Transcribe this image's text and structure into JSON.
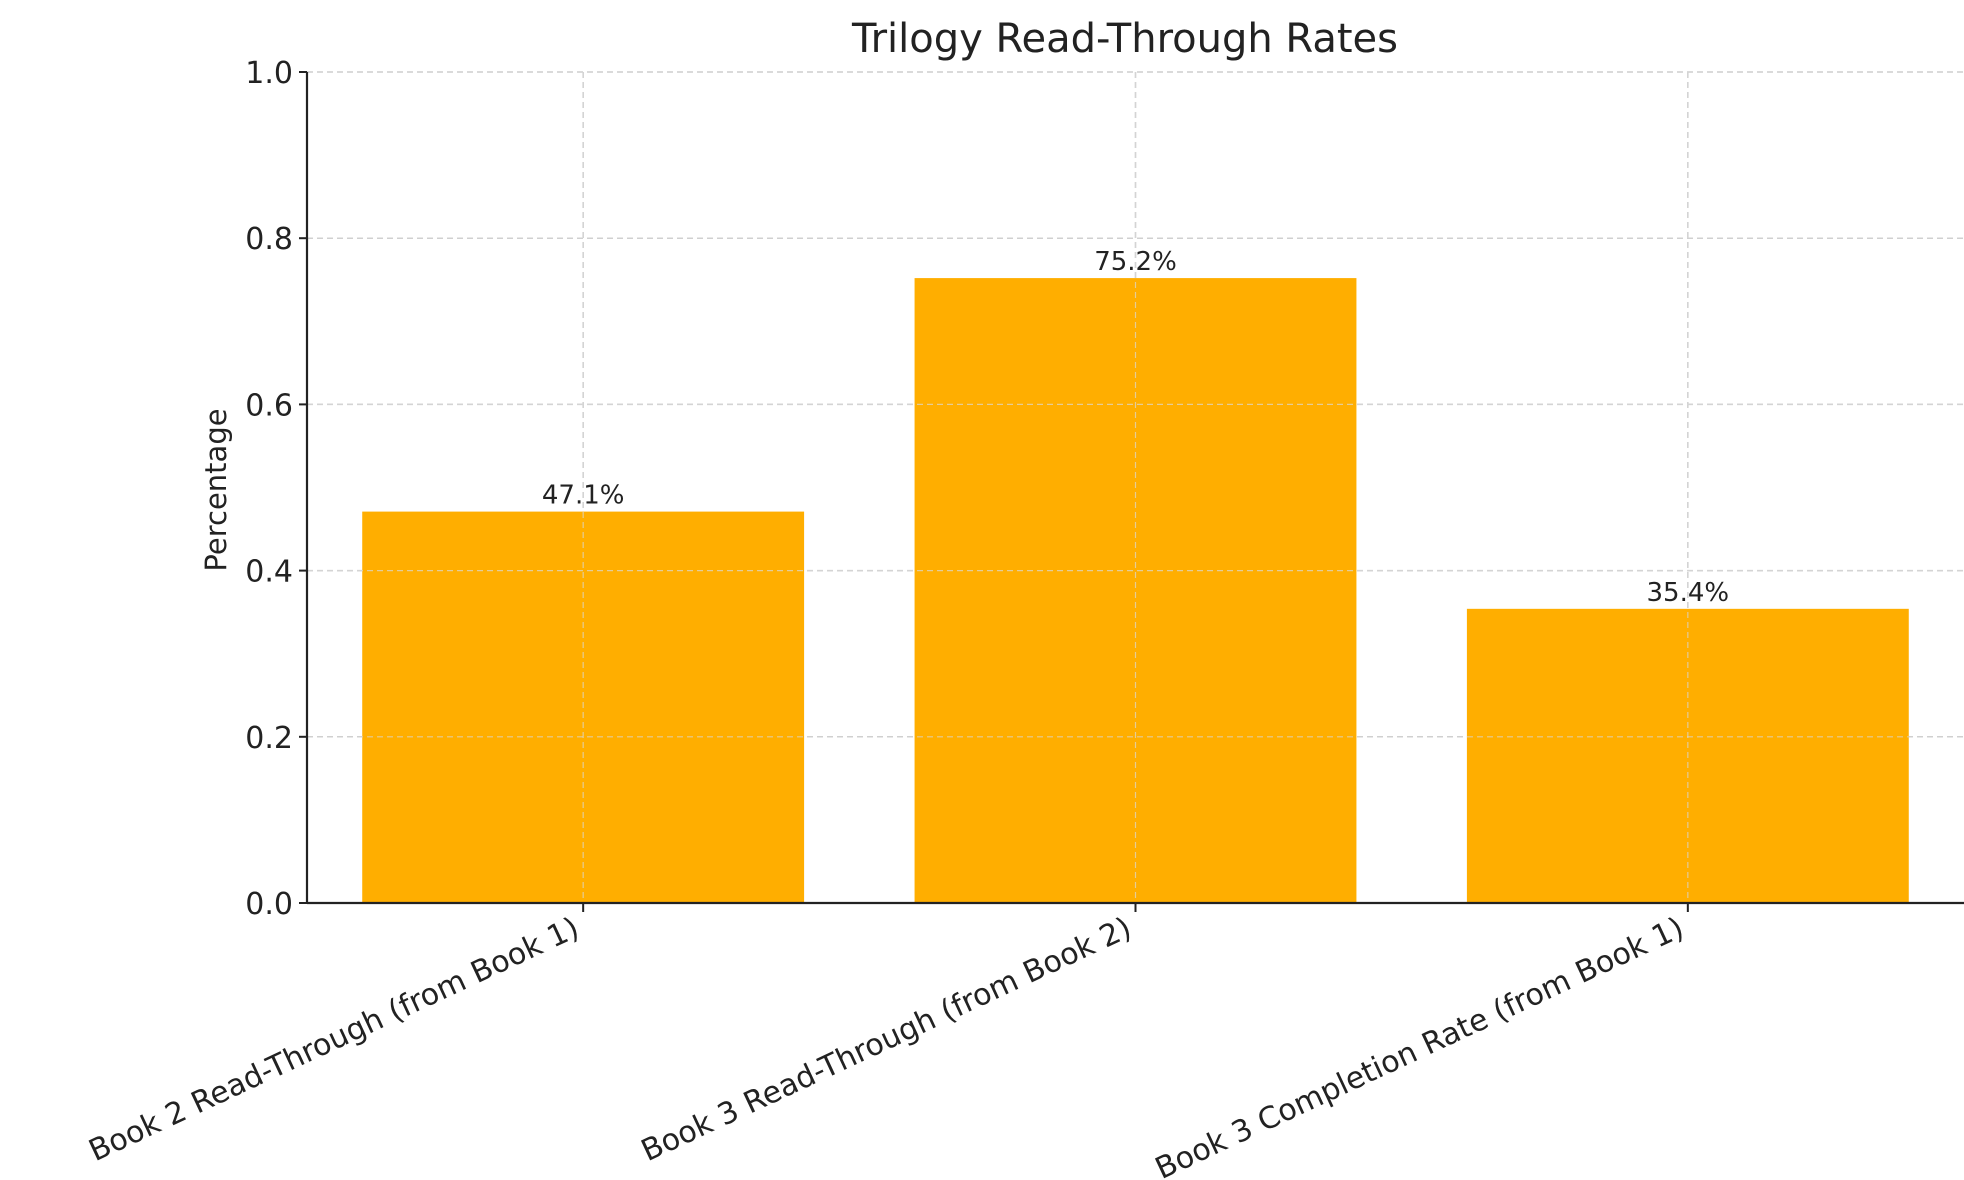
{
  "chart_data": {
    "type": "bar",
    "title": "Trilogy Read-Through Rates",
    "xlabel": "",
    "ylabel": "Percentage",
    "categories": [
      "Book 2 Read-Through (from Book 1)",
      "Book 3 Read-Through (from Book 2)",
      "Book 3 Completion Rate (from Book 1)"
    ],
    "values": [
      0.471,
      0.752,
      0.354
    ],
    "data_labels": [
      "47.1%",
      "75.2%",
      "35.4%"
    ],
    "ylim": [
      0,
      1.0
    ],
    "yticks": [
      "0.0",
      "0.2",
      "0.4",
      "0.6",
      "0.8",
      "1.0"
    ],
    "grid": true,
    "bar_color": "#FFAE00",
    "legend": false
  }
}
